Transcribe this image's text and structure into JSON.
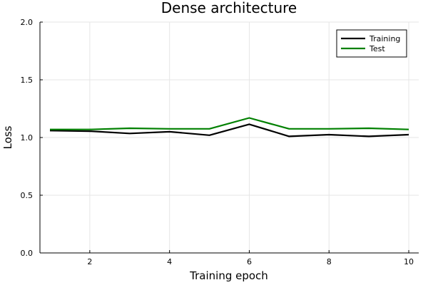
{
  "chart_data": {
    "type": "line",
    "title": "Dense architecture",
    "xlabel": "Training epoch",
    "ylabel": "Loss",
    "xlim": [
      0.75,
      10.25
    ],
    "ylim": [
      0.0,
      2.0
    ],
    "xticks": [
      2,
      4,
      6,
      8,
      10
    ],
    "xtick_labels": [
      "2",
      "4",
      "6",
      "8",
      "10"
    ],
    "yticks": [
      0.0,
      0.5,
      1.0,
      1.5,
      2.0
    ],
    "ytick_labels": [
      "0.0",
      "0.5",
      "1.0",
      "1.5",
      "2.0"
    ],
    "grid": true,
    "legend_position": "top-right",
    "x": [
      1,
      2,
      3,
      4,
      5,
      6,
      7,
      8,
      9,
      10
    ],
    "series": [
      {
        "name": "Training",
        "color": "#000000",
        "values": [
          1.06,
          1.055,
          1.035,
          1.05,
          1.02,
          1.115,
          1.01,
          1.025,
          1.01,
          1.025
        ]
      },
      {
        "name": "Test",
        "color": "#008000",
        "values": [
          1.07,
          1.07,
          1.08,
          1.075,
          1.075,
          1.17,
          1.075,
          1.075,
          1.08,
          1.07
        ]
      }
    ]
  }
}
